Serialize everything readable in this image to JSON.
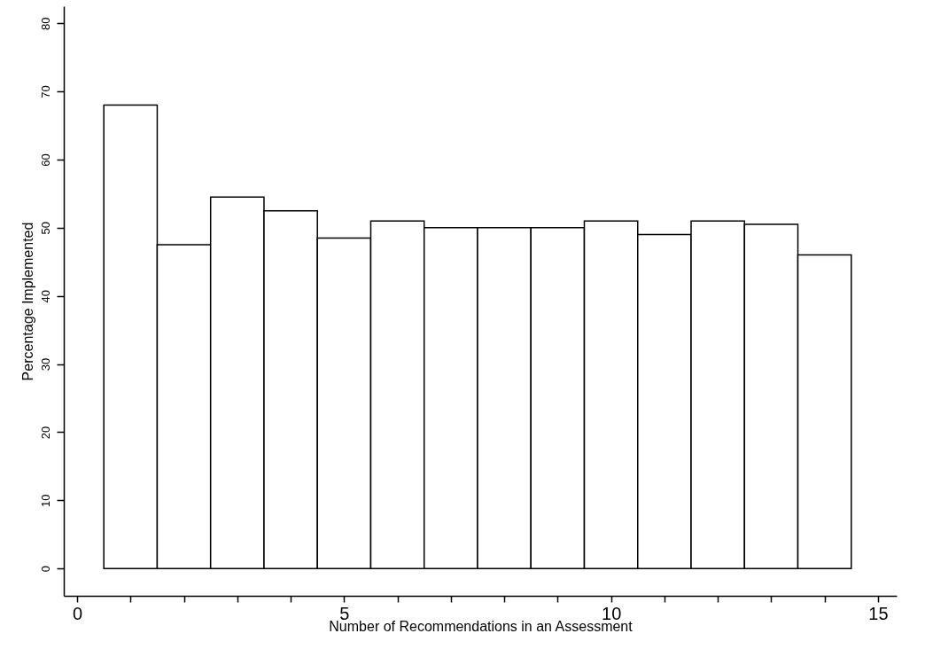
{
  "chart_data": {
    "type": "histogram",
    "xlabel": "Number of Recommendations in an Assessment",
    "ylabel": "Percentage Implemented",
    "bins": [
      0.5,
      1.5,
      2.5,
      3.5,
      4.5,
      5.5,
      6.5,
      7.5,
      8.5,
      9.5,
      10.5,
      11.5,
      12.5,
      13.5,
      14.5
    ],
    "values": [
      68,
      47.5,
      54.5,
      52.5,
      48.5,
      51,
      50,
      50,
      50,
      51,
      49,
      51,
      50.5,
      46
    ],
    "color": "#ffffff",
    "xlim": [
      -0.25,
      15.35
    ],
    "ylim": [
      -4,
      82.5
    ],
    "xticks": [
      0,
      {
        "value": 1,
        "label": null
      },
      {
        "value": 2,
        "label": null
      },
      {
        "value": 3,
        "label": null
      },
      {
        "value": 4,
        "label": null
      },
      5,
      {
        "value": 6,
        "label": null
      },
      {
        "value": 7,
        "label": null
      },
      {
        "value": 8,
        "label": null
      },
      {
        "value": 9,
        "label": null
      },
      10,
      {
        "value": 11,
        "label": null
      },
      {
        "value": 12,
        "label": null
      },
      {
        "value": 13,
        "label": null
      },
      {
        "value": 14,
        "label": null
      },
      15
    ],
    "yticks": [
      0,
      10,
      20,
      30,
      40,
      50,
      60,
      70,
      80
    ],
    "grid": false
  }
}
